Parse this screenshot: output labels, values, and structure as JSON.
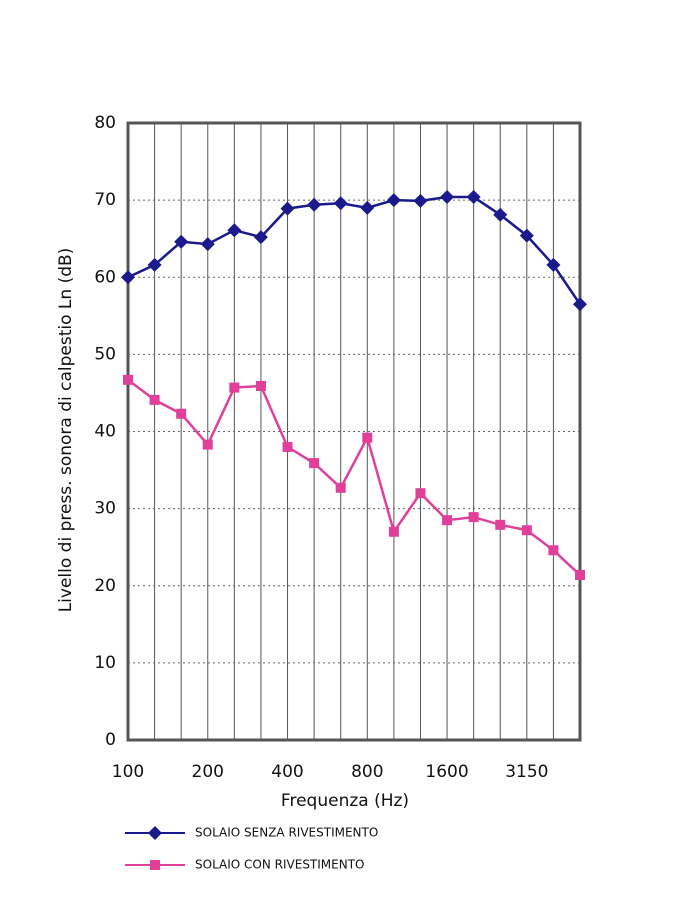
{
  "chart_data": {
    "type": "line",
    "x_label": "Frequenza (Hz)",
    "y_label": "Livello di press. sonora di calpestio Ln (dB)",
    "categories": [
      "100",
      null,
      null,
      "200",
      null,
      null,
      "400",
      null,
      null,
      "800",
      null,
      null,
      "1600",
      null,
      null,
      "3150",
      null,
      null
    ],
    "series": [
      {
        "name": "SOLAIO SENZA RIVESTIMENTO",
        "color": "#1a1a8c",
        "marker": "diamond",
        "values": [
          60,
          61.6,
          64.6,
          64.3,
          66.1,
          65.2,
          68.9,
          69.4,
          69.6,
          69.0,
          70.0,
          69.9,
          70.4,
          70.4,
          68.1,
          65.4,
          61.6,
          56.5
        ]
      },
      {
        "name": "SOLAIO CON RIVESTIMENTO",
        "color": "#e0409a",
        "marker": "square",
        "values": [
          46.7,
          44.1,
          42.3,
          38.3,
          45.7,
          45.9,
          38.0,
          35.9,
          32.7,
          39.2,
          27.0,
          32.0,
          28.5,
          28.9,
          27.9,
          27.2,
          24.6,
          21.4
        ]
      }
    ],
    "ylim": [
      0,
      80
    ],
    "yticks": [
      0,
      10,
      20,
      30,
      40,
      50,
      60,
      70,
      80
    ],
    "grid": true
  }
}
